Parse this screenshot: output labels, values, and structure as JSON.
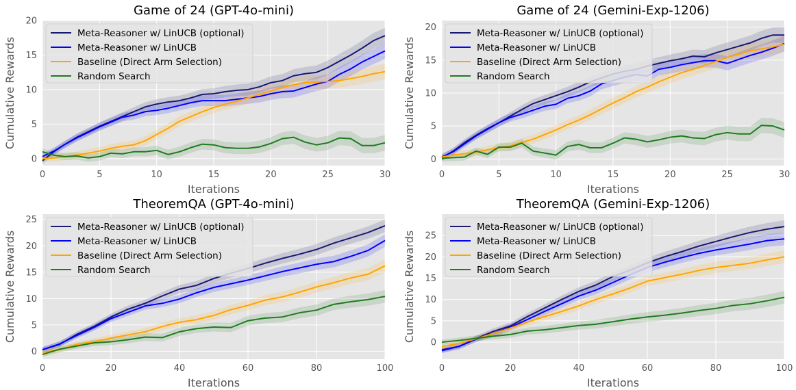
{
  "chart_data": [
    {
      "type": "line",
      "title": "Game of 24 (GPT-4o-mini)",
      "xlabel": "Iterations",
      "ylabel": "Cumulative Rewards",
      "xlim": [
        0,
        30
      ],
      "ylim": [
        -1,
        20
      ],
      "xticks": [
        0,
        5,
        10,
        15,
        20,
        25,
        30
      ],
      "yticks": [
        0,
        5,
        10,
        15,
        20
      ],
      "grid": true,
      "legend_position": "top-left",
      "series": [
        {
          "name": "Meta-Reasoner w/ LinUCB (optional)",
          "color": "#191970",
          "x": [
            0,
            1,
            2,
            3,
            4,
            5,
            6,
            7,
            8,
            9,
            10,
            11,
            12,
            13,
            14,
            15,
            16,
            17,
            18,
            19,
            20,
            21,
            22,
            23,
            24,
            25,
            26,
            27,
            28,
            29,
            30
          ],
          "y": [
            -0.3,
            1.0,
            2.1,
            3.1,
            3.9,
            4.7,
            5.4,
            6.1,
            6.8,
            7.5,
            7.9,
            8.2,
            8.4,
            8.8,
            9.3,
            9.4,
            9.7,
            9.9,
            10.0,
            10.4,
            11.0,
            11.3,
            12.0,
            12.3,
            12.5,
            13.2,
            14.1,
            15.0,
            16.0,
            17.1,
            17.8
          ]
        },
        {
          "name": "Meta-Reasoner w/ LinUCB",
          "color": "#0000ff",
          "x": [
            0,
            1,
            2,
            3,
            4,
            5,
            6,
            7,
            8,
            9,
            10,
            11,
            12,
            13,
            14,
            15,
            16,
            17,
            18,
            19,
            20,
            21,
            22,
            23,
            24,
            25,
            26,
            27,
            28,
            29,
            30
          ],
          "y": [
            0.3,
            1.1,
            2.1,
            3.0,
            3.8,
            4.6,
            5.3,
            6.0,
            6.3,
            6.8,
            7.0,
            7.3,
            7.7,
            8.1,
            8.4,
            8.4,
            8.4,
            8.6,
            8.8,
            9.0,
            9.4,
            9.7,
            9.8,
            10.3,
            10.8,
            11.2,
            12.2,
            13.0,
            14.0,
            14.8,
            15.6
          ]
        },
        {
          "name": "Baseline (Direct Arm Selection)",
          "color": "#ffa500",
          "x": [
            0,
            1,
            2,
            3,
            4,
            5,
            6,
            7,
            8,
            9,
            10,
            11,
            12,
            13,
            14,
            15,
            16,
            17,
            18,
            19,
            20,
            21,
            22,
            23,
            24,
            25,
            26,
            27,
            28,
            29,
            30
          ],
          "y": [
            0.0,
            0.1,
            0.3,
            0.5,
            0.8,
            1.1,
            1.5,
            1.8,
            2.0,
            2.6,
            3.5,
            4.4,
            5.4,
            6.1,
            6.8,
            7.4,
            7.9,
            8.3,
            8.8,
            9.3,
            9.8,
            10.3,
            10.7,
            11.0,
            11.1,
            11.2,
            11.3,
            11.6,
            11.9,
            12.3,
            12.6
          ]
        },
        {
          "name": "Random Search",
          "color": "#1f7a1f",
          "x": [
            0,
            1,
            2,
            3,
            4,
            5,
            6,
            7,
            8,
            9,
            10,
            11,
            12,
            13,
            14,
            15,
            16,
            17,
            18,
            19,
            20,
            21,
            22,
            23,
            24,
            25,
            26,
            27,
            28,
            29,
            30
          ],
          "y": [
            1.0,
            0.5,
            0.3,
            0.4,
            0.1,
            0.3,
            0.8,
            0.7,
            1.0,
            1.0,
            1.2,
            0.6,
            1.0,
            1.6,
            2.1,
            2.0,
            1.6,
            1.5,
            1.5,
            1.7,
            2.2,
            2.9,
            3.1,
            2.4,
            2.0,
            2.3,
            3.0,
            2.9,
            1.9,
            1.9,
            2.3
          ]
        }
      ]
    },
    {
      "type": "line",
      "title": "Game of 24 (Gemini-Exp-1206)",
      "xlabel": "Iterations",
      "ylabel": "Cumulative Rewards",
      "xlim": [
        0,
        30
      ],
      "ylim": [
        -1,
        21
      ],
      "xticks": [
        0,
        5,
        10,
        15,
        20,
        25,
        30
      ],
      "yticks": [
        0,
        5,
        10,
        15,
        20
      ],
      "grid": true,
      "legend_position": "top-left",
      "series": [
        {
          "name": "Meta-Reasoner w/ LinUCB (optional)",
          "color": "#191970",
          "x": [
            0,
            1,
            2,
            3,
            4,
            5,
            6,
            7,
            8,
            9,
            10,
            11,
            12,
            13,
            14,
            15,
            16,
            17,
            18,
            19,
            20,
            21,
            22,
            23,
            24,
            25,
            26,
            27,
            28,
            29,
            30
          ],
          "y": [
            0.2,
            1.2,
            2.5,
            3.6,
            4.6,
            5.5,
            6.5,
            7.5,
            8.4,
            9.0,
            9.6,
            10.2,
            10.9,
            11.7,
            12.3,
            12.9,
            13.3,
            13.6,
            14.1,
            14.5,
            14.9,
            15.2,
            15.6,
            15.5,
            16.1,
            16.6,
            17.1,
            17.6,
            18.3,
            18.8,
            18.8
          ]
        },
        {
          "name": "Meta-Reasoner w/ LinUCB",
          "color": "#0000ff",
          "x": [
            0,
            1,
            2,
            3,
            4,
            5,
            6,
            7,
            8,
            9,
            10,
            11,
            12,
            13,
            14,
            15,
            16,
            17,
            18,
            19,
            20,
            21,
            22,
            23,
            24,
            25,
            26,
            27,
            28,
            29,
            30
          ],
          "y": [
            0.3,
            1.1,
            2.3,
            3.5,
            4.5,
            5.5,
            6.3,
            6.8,
            7.4,
            8.0,
            8.3,
            9.2,
            9.6,
            10.3,
            11.4,
            11.9,
            12.4,
            12.8,
            12.6,
            13.6,
            13.9,
            14.3,
            14.6,
            14.9,
            14.9,
            14.5,
            15.1,
            15.7,
            16.2,
            16.8,
            17.5
          ]
        },
        {
          "name": "Baseline (Direct Arm Selection)",
          "color": "#ffa500",
          "x": [
            0,
            1,
            2,
            3,
            4,
            5,
            6,
            7,
            8,
            9,
            10,
            11,
            12,
            13,
            14,
            15,
            16,
            17,
            18,
            19,
            20,
            21,
            22,
            23,
            24,
            25,
            26,
            27,
            28,
            29,
            30
          ],
          "y": [
            0.3,
            0.6,
            0.8,
            1.0,
            1.4,
            1.7,
            2.0,
            2.5,
            3.0,
            3.7,
            4.4,
            5.2,
            5.9,
            6.7,
            7.6,
            8.5,
            9.3,
            10.2,
            10.9,
            11.7,
            12.4,
            13.1,
            13.6,
            14.2,
            14.8,
            15.4,
            15.9,
            16.4,
            16.7,
            17.0,
            17.4
          ]
        },
        {
          "name": "Random Search",
          "color": "#1f7a1f",
          "x": [
            0,
            1,
            2,
            3,
            4,
            5,
            6,
            7,
            8,
            9,
            10,
            11,
            12,
            13,
            14,
            15,
            16,
            17,
            18,
            19,
            20,
            21,
            22,
            23,
            24,
            25,
            26,
            27,
            28,
            29,
            30
          ],
          "y": [
            0.1,
            0.2,
            0.3,
            1.2,
            0.7,
            1.8,
            1.8,
            2.4,
            1.2,
            0.9,
            0.6,
            1.9,
            2.2,
            1.7,
            1.7,
            2.4,
            3.2,
            3.0,
            2.6,
            2.9,
            3.3,
            3.5,
            3.2,
            3.1,
            3.7,
            4.0,
            3.8,
            3.8,
            5.1,
            5.0,
            4.4
          ]
        }
      ]
    },
    {
      "type": "line",
      "title": "TheoremQA (GPT-4o-mini)",
      "xlabel": "Iterations",
      "ylabel": "Cumulative Rewards",
      "xlim": [
        0,
        100
      ],
      "ylim": [
        -1.5,
        26
      ],
      "xticks": [
        0,
        20,
        40,
        60,
        80,
        100
      ],
      "yticks": [
        0,
        5,
        10,
        15,
        20,
        25
      ],
      "grid": true,
      "legend_position": "top-left",
      "series": [
        {
          "name": "Meta-Reasoner w/ LinUCB (optional)",
          "color": "#191970",
          "x": [
            0,
            5,
            10,
            15,
            20,
            25,
            30,
            35,
            40,
            45,
            50,
            55,
            60,
            65,
            70,
            75,
            80,
            85,
            90,
            95,
            100
          ],
          "y": [
            0.3,
            1.3,
            3.2,
            4.7,
            6.5,
            8.0,
            9.1,
            10.5,
            11.8,
            12.5,
            13.8,
            14.8,
            15.7,
            16.7,
            17.6,
            18.4,
            19.3,
            20.5,
            21.5,
            22.5,
            23.8
          ]
        },
        {
          "name": "Meta-Reasoner w/ LinUCB",
          "color": "#0000ff",
          "x": [
            0,
            5,
            10,
            15,
            20,
            25,
            30,
            35,
            40,
            45,
            50,
            55,
            60,
            65,
            70,
            75,
            80,
            85,
            90,
            95,
            100
          ],
          "y": [
            0.3,
            1.4,
            3.0,
            4.5,
            6.2,
            7.4,
            8.6,
            9.1,
            9.9,
            11.1,
            12.1,
            12.8,
            13.5,
            14.3,
            15.1,
            15.8,
            16.5,
            17.0,
            18.0,
            19.1,
            21.0
          ]
        },
        {
          "name": "Baseline (Direct Arm Selection)",
          "color": "#ffa500",
          "x": [
            0,
            5,
            10,
            15,
            20,
            25,
            30,
            35,
            40,
            45,
            50,
            55,
            60,
            65,
            70,
            75,
            80,
            85,
            90,
            95,
            100
          ],
          "y": [
            -0.2,
            0.3,
            1.3,
            1.8,
            2.5,
            3.1,
            3.7,
            4.7,
            5.5,
            6.0,
            6.8,
            7.9,
            8.7,
            9.7,
            10.3,
            11.2,
            12.2,
            13.0,
            13.9,
            14.6,
            16.2
          ]
        },
        {
          "name": "Random Search",
          "color": "#1f7a1f",
          "x": [
            0,
            5,
            10,
            15,
            20,
            25,
            30,
            35,
            40,
            45,
            50,
            55,
            60,
            65,
            70,
            75,
            80,
            85,
            90,
            95,
            100
          ],
          "y": [
            -0.6,
            0.4,
            1.0,
            1.6,
            1.8,
            2.2,
            2.7,
            2.6,
            3.7,
            4.3,
            4.6,
            4.5,
            5.8,
            6.3,
            6.5,
            7.3,
            7.8,
            8.9,
            9.4,
            9.8,
            10.4
          ]
        }
      ]
    },
    {
      "type": "line",
      "title": "TheoremQA (Gemini-Exp-1206)",
      "xlabel": "Iterations",
      "ylabel": "Cumulative Rewards",
      "xlim": [
        0,
        100
      ],
      "ylim": [
        -4,
        30
      ],
      "xticks": [
        0,
        20,
        40,
        60,
        80,
        100
      ],
      "yticks": [
        0,
        5,
        10,
        15,
        20,
        25
      ],
      "grid": true,
      "legend_position": "top-left",
      "series": [
        {
          "name": "Meta-Reasoner w/ LinUCB (optional)",
          "color": "#191970",
          "x": [
            0,
            5,
            10,
            15,
            20,
            25,
            30,
            35,
            40,
            45,
            50,
            55,
            60,
            65,
            70,
            75,
            80,
            85,
            90,
            95,
            100
          ],
          "y": [
            -1.8,
            -1.0,
            0.8,
            2.5,
            3.8,
            6.0,
            8.0,
            10.0,
            11.9,
            13.4,
            15.4,
            16.9,
            18.6,
            20.0,
            21.2,
            22.5,
            23.6,
            24.7,
            25.7,
            26.5,
            27.1
          ]
        },
        {
          "name": "Meta-Reasoner w/ LinUCB",
          "color": "#0000ff",
          "x": [
            0,
            5,
            10,
            15,
            20,
            25,
            30,
            35,
            40,
            45,
            50,
            55,
            60,
            65,
            70,
            75,
            80,
            85,
            90,
            95,
            100
          ],
          "y": [
            -2.0,
            -1.0,
            0.7,
            2.0,
            3.5,
            5.3,
            7.2,
            9.0,
            10.8,
            12.2,
            14.0,
            15.8,
            17.5,
            18.7,
            19.8,
            20.8,
            21.6,
            22.3,
            23.0,
            23.8,
            24.2
          ]
        },
        {
          "name": "Baseline (Direct Arm Selection)",
          "color": "#ffa500",
          "x": [
            0,
            5,
            10,
            15,
            20,
            25,
            30,
            35,
            40,
            45,
            50,
            55,
            60,
            65,
            70,
            75,
            80,
            85,
            90,
            95,
            100
          ],
          "y": [
            -1.0,
            -0.3,
            0.8,
            2.0,
            3.3,
            4.7,
            6.0,
            7.2,
            8.5,
            10.0,
            11.3,
            12.7,
            14.3,
            15.1,
            15.9,
            16.8,
            17.5,
            18.0,
            18.5,
            19.3,
            20.0
          ]
        },
        {
          "name": "Random Search",
          "color": "#1f7a1f",
          "x": [
            0,
            5,
            10,
            15,
            20,
            25,
            30,
            35,
            40,
            45,
            50,
            55,
            60,
            65,
            70,
            75,
            80,
            85,
            90,
            95,
            100
          ],
          "y": [
            0.0,
            0.4,
            0.9,
            1.4,
            1.8,
            2.6,
            2.9,
            3.4,
            3.9,
            4.2,
            4.8,
            5.4,
            5.9,
            6.3,
            6.8,
            7.4,
            7.9,
            8.6,
            9.0,
            9.7,
            10.5
          ]
        }
      ]
    }
  ]
}
